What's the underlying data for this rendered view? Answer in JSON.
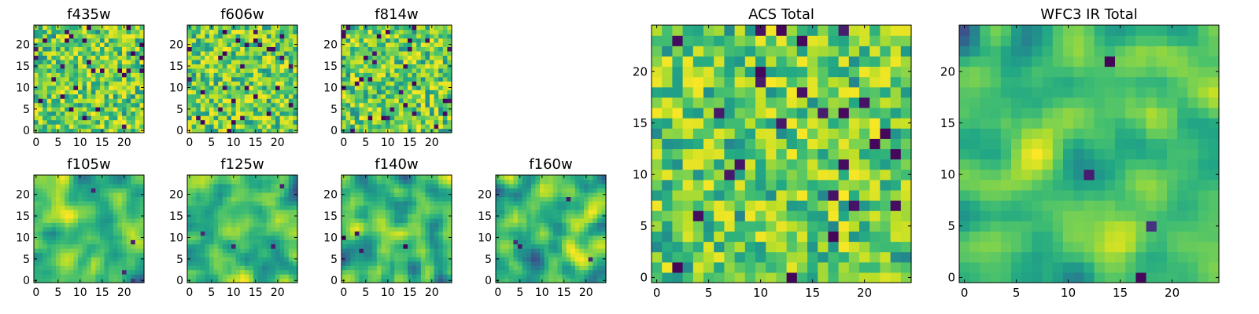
{
  "figure": {
    "background": "#ffffff",
    "colormap": "viridis"
  },
  "chart_data": [
    {
      "type": "heatmap",
      "title": "f435w",
      "grid": [
        25,
        25
      ],
      "xticks": [
        0,
        5,
        10,
        15,
        20
      ],
      "yticks": [
        0,
        5,
        10,
        15,
        20
      ],
      "xlim": [
        -0.5,
        24.5
      ],
      "ylim": [
        -0.5,
        24.5
      ],
      "value_range": [
        0,
        1
      ],
      "texture": "noise",
      "seed": 11
    },
    {
      "type": "heatmap",
      "title": "f606w",
      "grid": [
        25,
        25
      ],
      "xticks": [
        0,
        5,
        10,
        15,
        20
      ],
      "yticks": [
        0,
        5,
        10,
        15,
        20
      ],
      "xlim": [
        -0.5,
        24.5
      ],
      "ylim": [
        -0.5,
        24.5
      ],
      "value_range": [
        0,
        1
      ],
      "texture": "noise",
      "seed": 23
    },
    {
      "type": "heatmap",
      "title": "f814w",
      "grid": [
        25,
        25
      ],
      "xticks": [
        0,
        5,
        10,
        15,
        20
      ],
      "yticks": [
        0,
        5,
        10,
        15,
        20
      ],
      "xlim": [
        -0.5,
        24.5
      ],
      "ylim": [
        -0.5,
        24.5
      ],
      "value_range": [
        0,
        1
      ],
      "texture": "noise",
      "seed": 37
    },
    {
      "type": "heatmap",
      "title": "f105w",
      "grid": [
        25,
        25
      ],
      "xticks": [
        0,
        5,
        10,
        15,
        20
      ],
      "yticks": [
        0,
        5,
        10,
        15,
        20
      ],
      "xlim": [
        -0.5,
        24.5
      ],
      "ylim": [
        -0.5,
        24.5
      ],
      "value_range": [
        0,
        1
      ],
      "texture": "smooth",
      "seed": 41
    },
    {
      "type": "heatmap",
      "title": "f125w",
      "grid": [
        25,
        25
      ],
      "xticks": [
        0,
        5,
        10,
        15,
        20
      ],
      "yticks": [
        0,
        5,
        10,
        15,
        20
      ],
      "xlim": [
        -0.5,
        24.5
      ],
      "ylim": [
        -0.5,
        24.5
      ],
      "value_range": [
        0,
        1
      ],
      "texture": "smooth",
      "seed": 53
    },
    {
      "type": "heatmap",
      "title": "f140w",
      "grid": [
        25,
        25
      ],
      "xticks": [
        0,
        5,
        10,
        15,
        20
      ],
      "yticks": [
        0,
        5,
        10,
        15,
        20
      ],
      "xlim": [
        -0.5,
        24.5
      ],
      "ylim": [
        -0.5,
        24.5
      ],
      "value_range": [
        0,
        1
      ],
      "texture": "smooth",
      "seed": 67
    },
    {
      "type": "heatmap",
      "title": "f160w",
      "grid": [
        25,
        25
      ],
      "xticks": [
        0,
        5,
        10,
        15,
        20
      ],
      "yticks": [
        0,
        5,
        10,
        15,
        20
      ],
      "xlim": [
        -0.5,
        24.5
      ],
      "ylim": [
        -0.5,
        24.5
      ],
      "value_range": [
        0,
        1
      ],
      "texture": "smooth",
      "seed": 79
    },
    {
      "type": "heatmap",
      "title": "ACS Total",
      "grid": [
        25,
        25
      ],
      "xticks": [
        0,
        5,
        10,
        15,
        20
      ],
      "yticks": [
        0,
        5,
        10,
        15,
        20
      ],
      "xlim": [
        -0.5,
        24.5
      ],
      "ylim": [
        -0.5,
        24.5
      ],
      "value_range": [
        0,
        1
      ],
      "texture": "noise",
      "seed": 97
    },
    {
      "type": "heatmap",
      "title": "WFC3 IR Total",
      "grid": [
        25,
        25
      ],
      "xticks": [
        0,
        5,
        10,
        15,
        20
      ],
      "yticks": [
        0,
        5,
        10,
        15,
        20
      ],
      "xlim": [
        -0.5,
        24.5
      ],
      "ylim": [
        -0.5,
        24.5
      ],
      "value_range": [
        0,
        1
      ],
      "texture": "smooth",
      "seed": 103
    }
  ]
}
